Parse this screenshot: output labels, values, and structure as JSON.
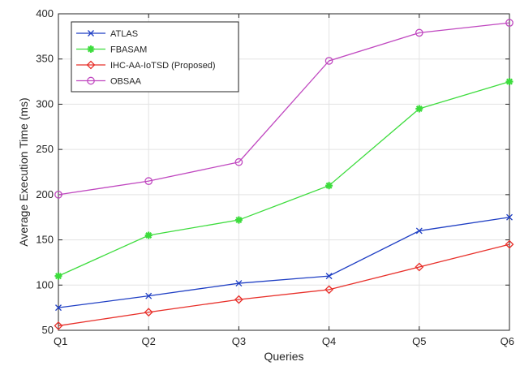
{
  "chart_data": {
    "type": "line",
    "categories": [
      "Q1",
      "Q2",
      "Q3",
      "Q4",
      "Q5",
      "Q6"
    ],
    "xlabel": "Queries",
    "ylabel": "Average Execution Time (ms)",
    "ylim": [
      50,
      400
    ],
    "yticks": [
      50,
      100,
      150,
      200,
      250,
      300,
      350,
      400
    ],
    "grid": true,
    "legend_position": "top-left",
    "series": [
      {
        "name": "ATLAS",
        "color": "#1f3fc4",
        "marker": "x",
        "values": [
          75,
          88,
          102,
          110,
          160,
          175
        ]
      },
      {
        "name": "FBASAM",
        "color": "#3ddc3d",
        "marker": "*",
        "values": [
          110,
          155,
          172,
          210,
          295,
          325
        ]
      },
      {
        "name": "IHC-AA-IoTSD (Proposed)",
        "color": "#e8302a",
        "marker": "diamond",
        "values": [
          55,
          70,
          84,
          95,
          120,
          145
        ]
      },
      {
        "name": "OBSAA",
        "color": "#c048c0",
        "marker": "circle",
        "values": [
          200,
          215,
          236,
          348,
          379,
          390
        ]
      }
    ]
  }
}
